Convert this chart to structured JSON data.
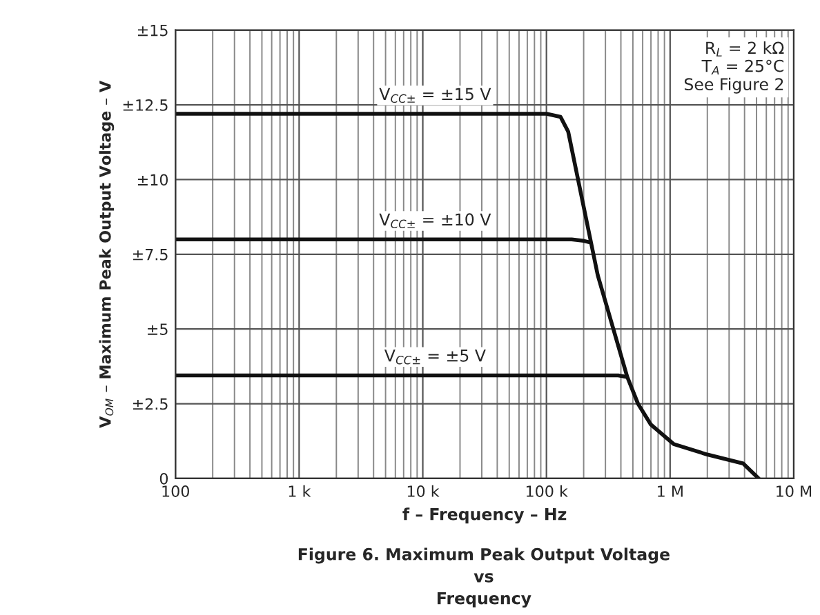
{
  "chart_data": {
    "type": "line",
    "title": "Figure 6. Maximum Peak Output Voltage\nvs\nFrequency",
    "xlabel": "f – Frequency – Hz",
    "ylabel": "V$_{OM}$ – Maximum Peak Output Voltage – V",
    "log": "x",
    "grid": true,
    "legend": false,
    "marker": "none",
    "line_style": "solid",
    "xlim": [
      100,
      10000000
    ],
    "xticks": [
      {
        "value": 100,
        "label": "100"
      },
      {
        "value": 1000,
        "label": "1 k"
      },
      {
        "value": 10000,
        "label": "10 k"
      },
      {
        "value": 100000,
        "label": "100 k"
      },
      {
        "value": 1000000,
        "label": "1 M"
      },
      {
        "value": 10000000,
        "label": "10 M"
      }
    ],
    "ylim": [
      0,
      15
    ],
    "yticks": [
      0,
      {
        "value": 2.5,
        "label": "±2.5"
      },
      {
        "value": 5,
        "label": "±5"
      },
      {
        "value": 7.5,
        "label": "±7.5"
      },
      {
        "value": 10,
        "label": "±10"
      },
      {
        "value": 12.5,
        "label": "±12.5"
      },
      {
        "value": 15,
        "label": "±15"
      }
    ],
    "series": [
      {
        "name": "V$_{CC±}$ = ±15 V",
        "color": "#111111",
        "x": [
          100,
          100000,
          130000,
          150000,
          260000,
          450000,
          550000,
          700000,
          1070000,
          2000000,
          3900000,
          5200000
        ],
        "values": [
          12.2,
          12.2,
          12.1,
          11.6,
          6.8,
          3.4,
          2.5,
          1.8,
          1.15,
          0.8,
          0.5,
          0
        ]
      },
      {
        "name": "V$_{CC±}$ = ±10 V",
        "color": "#111111",
        "x": [
          100,
          160000,
          200000,
          225000
        ],
        "values": [
          8.0,
          8.0,
          7.95,
          7.9
        ]
      },
      {
        "name": "V$_{CC±}$ = ±5 V",
        "color": "#111111",
        "x": [
          100,
          380000,
          440000
        ],
        "values": [
          3.45,
          3.45,
          3.4
        ]
      }
    ],
    "annotations": [
      "R$_{L}$ = 2 kΩ",
      "T$_{A}$ = 25°C",
      "See Figure 2"
    ]
  }
}
